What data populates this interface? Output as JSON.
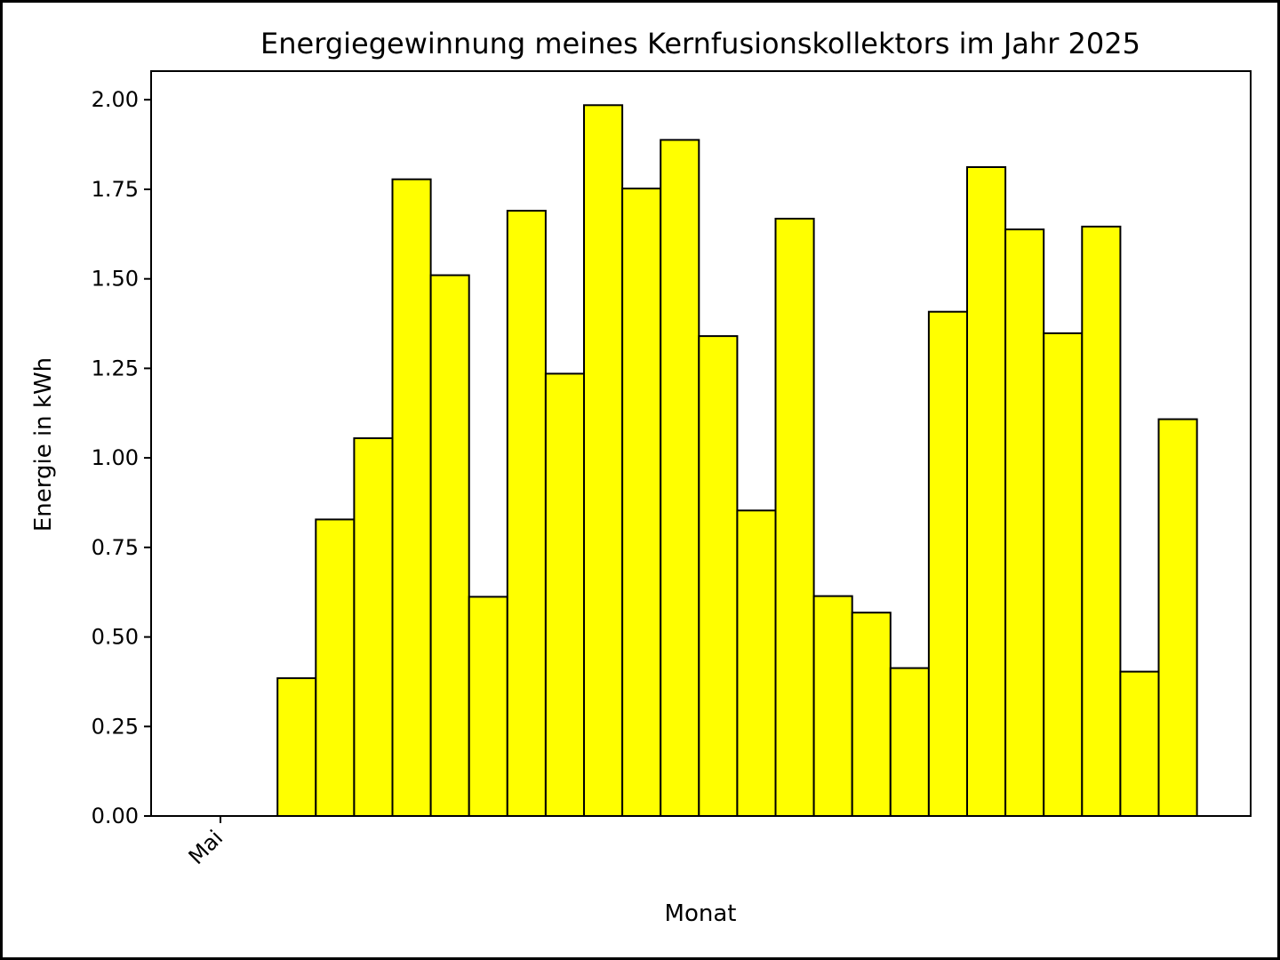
{
  "chart_data": {
    "type": "bar",
    "title": "Energiegewinnung meines Kernfusionskollektors im Jahr 2025",
    "xlabel": "Monat",
    "ylabel": "Energie in kWh",
    "x_tick_labels": [
      "Mai"
    ],
    "y_ticks": [
      "0.00",
      "0.25",
      "0.50",
      "0.75",
      "1.00",
      "1.25",
      "1.50",
      "1.75",
      "2.00"
    ],
    "ylim": [
      0,
      2.08
    ],
    "values": [
      0.0,
      0.0,
      0.385,
      0.828,
      1.055,
      1.778,
      1.51,
      0.612,
      1.69,
      1.235,
      1.985,
      1.752,
      1.888,
      1.34,
      0.853,
      1.668,
      0.614,
      0.568,
      0.413,
      1.408,
      1.812,
      1.638,
      1.348,
      1.646,
      0.403,
      1.108
    ],
    "bar_color": "#ffff00",
    "edge_color": "#000000",
    "grid": false,
    "legend": "none"
  }
}
